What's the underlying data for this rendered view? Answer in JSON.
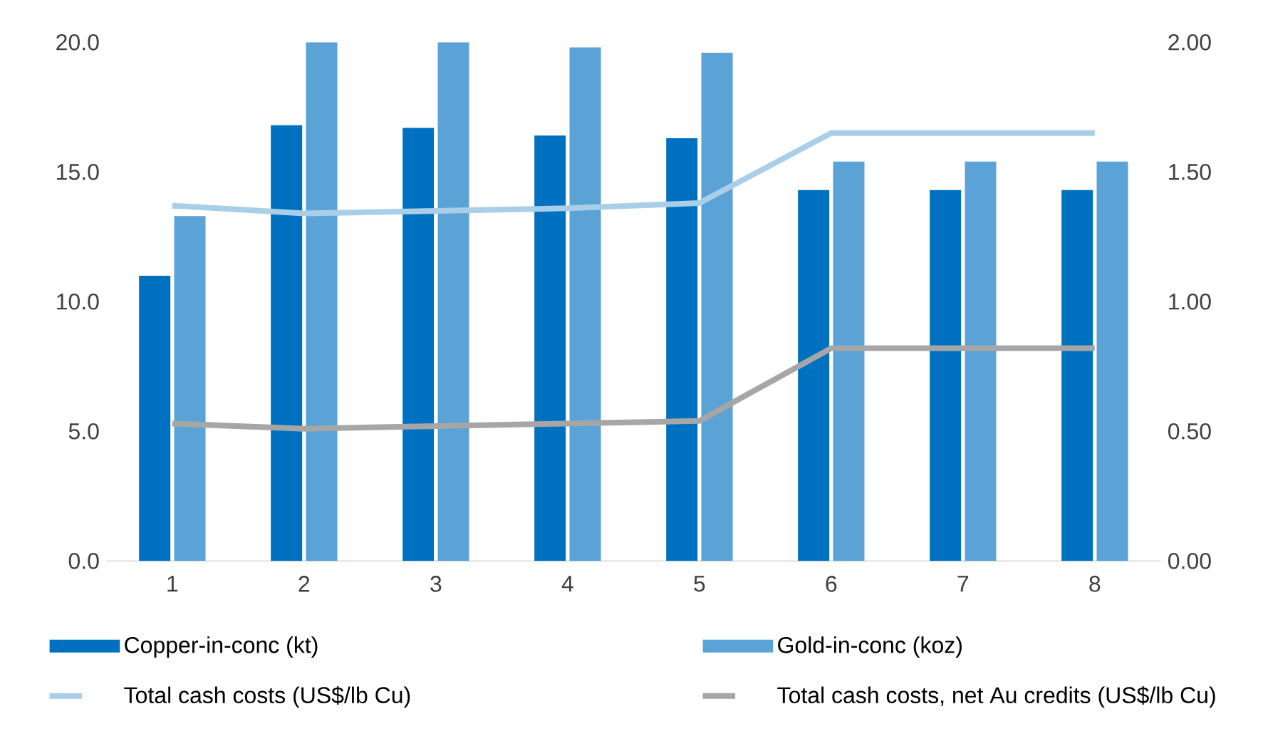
{
  "chart_data": {
    "type": "bar",
    "categories": [
      "1",
      "2",
      "3",
      "4",
      "5",
      "6",
      "7",
      "8"
    ],
    "series": [
      {
        "name": "Copper-in-conc (kt)",
        "color": "#0070c0",
        "values": [
          11.0,
          16.8,
          16.7,
          16.4,
          16.3,
          14.3,
          14.3,
          14.3
        ]
      },
      {
        "name": "Gold-in-conc (koz)",
        "color": "#5ba3d6",
        "values": [
          13.3,
          20.0,
          20.0,
          19.8,
          19.6,
          15.4,
          15.4,
          15.4
        ]
      },
      {
        "name": "Total cash costs (US$/lb Cu)",
        "type": "line",
        "axis": "y2",
        "color": "#a9cfe8",
        "values": [
          1.37,
          1.34,
          1.35,
          1.36,
          1.38,
          1.65,
          1.65,
          1.65
        ]
      },
      {
        "name": "Total cash costs, net Au credits (US$/lb Cu)",
        "type": "line",
        "axis": "y2",
        "color": "#a6a6a6",
        "values": [
          0.53,
          0.51,
          0.52,
          0.53,
          0.54,
          0.82,
          0.82,
          0.82
        ]
      }
    ],
    "ylim": [
      0,
      20
    ],
    "yticks": [
      {
        "value": 0,
        "label": "0.0"
      },
      {
        "value": 5,
        "label": "5.0"
      },
      {
        "value": 10,
        "label": "10.0"
      },
      {
        "value": 15,
        "label": "15.0"
      },
      {
        "value": 20,
        "label": "20.0"
      }
    ],
    "y2lim": [
      0,
      2
    ],
    "y2ticks": [
      {
        "value": 0,
        "label": "0.00"
      },
      {
        "value": 0.5,
        "label": "0.50"
      },
      {
        "value": 1,
        "label": "1.00"
      },
      {
        "value": 1.5,
        "label": "1.50"
      },
      {
        "value": 2,
        "label": "2.00"
      }
    ],
    "grid": false,
    "legend": "bottom",
    "marker": "none",
    "line_style": "solid"
  }
}
